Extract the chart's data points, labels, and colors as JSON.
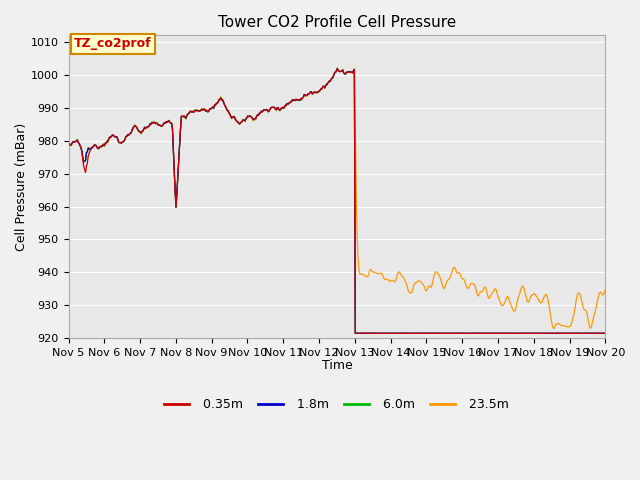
{
  "title": "Tower CO2 Profile Cell Pressure",
  "xlabel": "Time",
  "ylabel": "Cell Pressure (mBar)",
  "ylim": [
    920,
    1012
  ],
  "yticks": [
    920,
    930,
    940,
    950,
    960,
    970,
    980,
    990,
    1000,
    1010
  ],
  "xtick_labels": [
    "Nov 5",
    "Nov 6",
    "Nov 7",
    "Nov 8",
    "Nov 9",
    "Nov 10",
    "Nov 11",
    "Nov 12",
    "Nov 13",
    "Nov 14",
    "Nov 15",
    "Nov 16",
    "Nov 17",
    "Nov 18",
    "Nov 19",
    "Nov 20"
  ],
  "colors": {
    "0.35m": "#cc0000",
    "1.8m": "#0000cc",
    "6.0m": "#00bb00",
    "23.5m": "#ff9900"
  },
  "legend_labels": [
    "0.35m",
    "1.8m",
    "6.0m",
    "23.5m"
  ],
  "annotation_text": "TZ_co2prof",
  "annotation_color": "#cc0000",
  "annotation_bg": "#ffffcc",
  "annotation_border": "#cc8800",
  "plot_bg_color": "#e8e8e8",
  "fig_bg_color": "#f0f0f0",
  "grid_color": "#ffffff",
  "title_fontsize": 11,
  "axis_fontsize": 9,
  "tick_fontsize": 8
}
